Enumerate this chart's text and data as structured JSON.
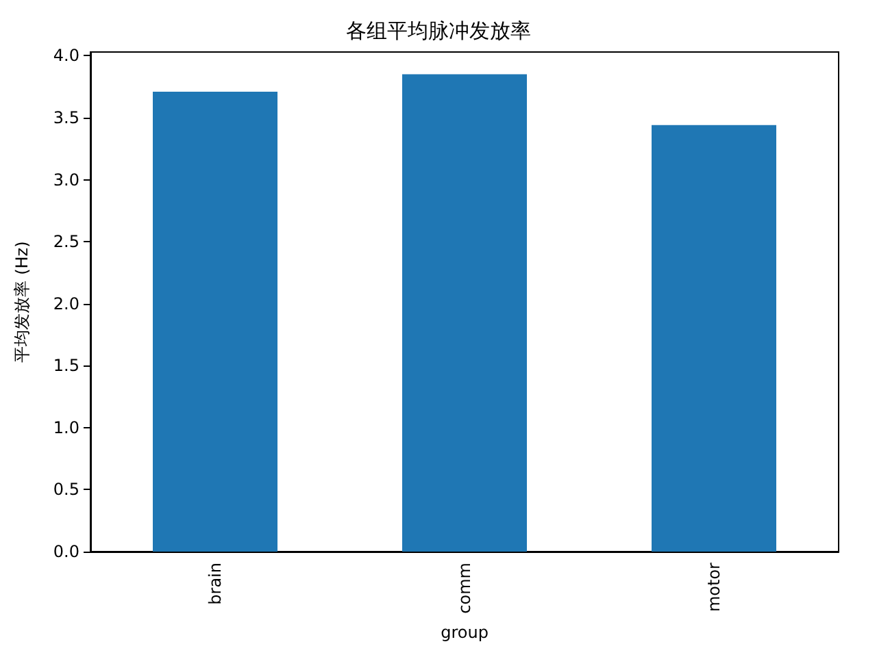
{
  "chart_data": {
    "type": "bar",
    "title": "各组平均脉冲发放率",
    "xlabel": "group",
    "ylabel": "平均发放率 (Hz)",
    "categories": [
      "brain",
      "comm",
      "motor"
    ],
    "values": [
      3.71,
      3.85,
      3.44
    ],
    "color": "#1f77b4",
    "ylim": [
      0,
      4.03
    ],
    "yticks": [
      {
        "value": 0,
        "label": "0.0"
      },
      {
        "value": 0.5,
        "label": "0.5"
      },
      {
        "value": 1,
        "label": "1.0"
      },
      {
        "value": 1.5,
        "label": "1.5"
      },
      {
        "value": 2,
        "label": "2.0"
      },
      {
        "value": 2.5,
        "label": "2.5"
      },
      {
        "value": 3,
        "label": "3.0"
      },
      {
        "value": 3.5,
        "label": "3.5"
      },
      {
        "value": 4,
        "label": "4.0"
      }
    ],
    "grid": false
  }
}
